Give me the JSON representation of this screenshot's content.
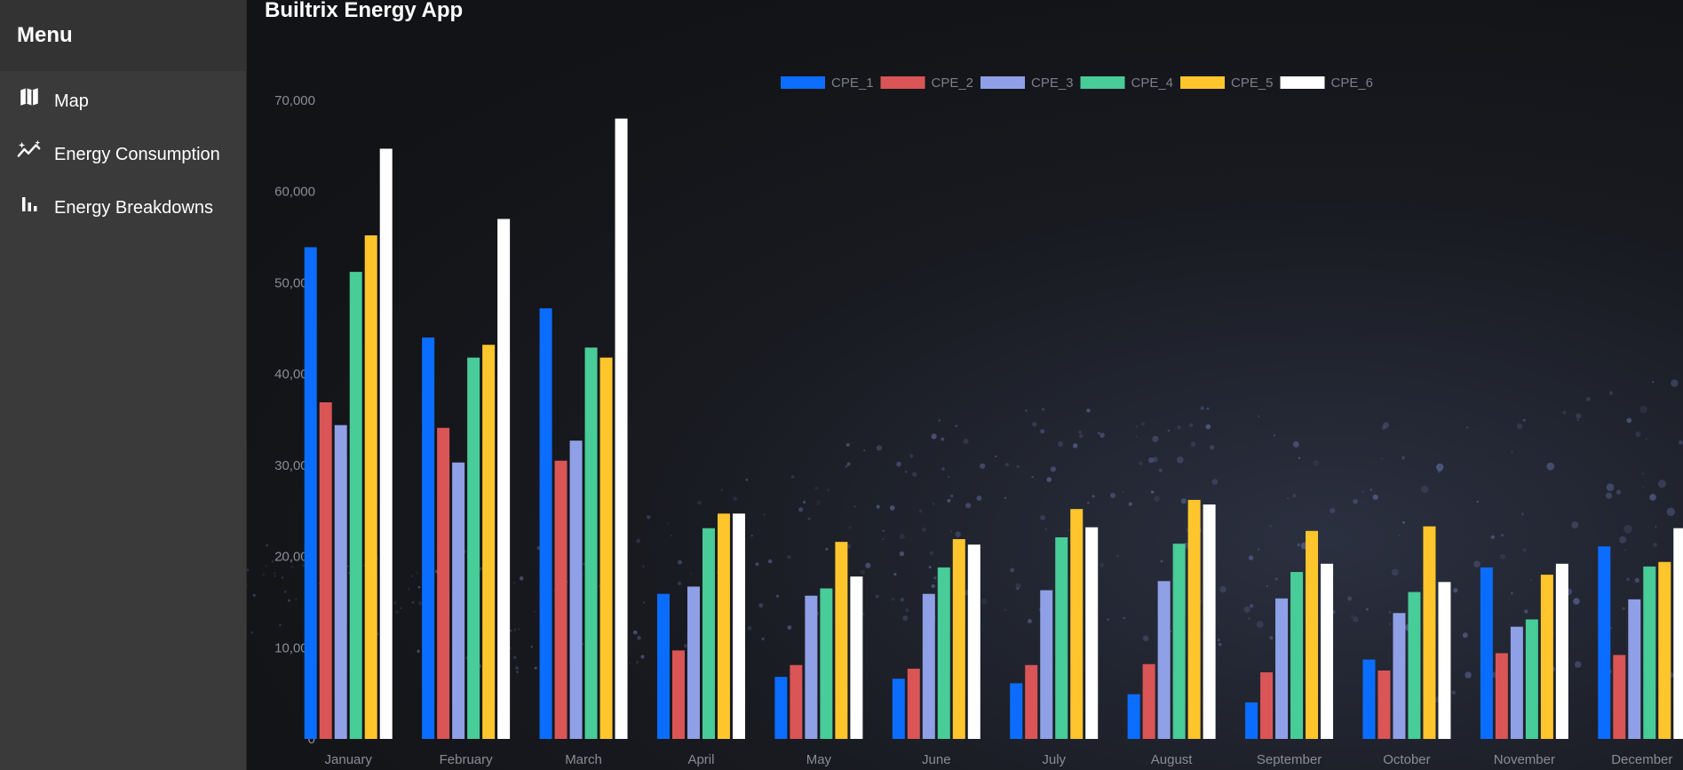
{
  "sidebar": {
    "title": "Menu",
    "items": [
      {
        "label": "Map",
        "icon": "map-icon"
      },
      {
        "label": "Energy Consumption",
        "icon": "sparkle-chart-icon"
      },
      {
        "label": "Energy Breakdowns",
        "icon": "bar-chart-icon"
      }
    ]
  },
  "header": {
    "title": "Builtrix Energy App"
  },
  "chart_data": {
    "type": "bar",
    "title": "",
    "xlabel": "",
    "ylabel": "",
    "ylim": [
      0,
      70000
    ],
    "yticks": [
      "0",
      "10,000",
      "20,000",
      "30,000",
      "40,000",
      "50,000",
      "60,000",
      "70,000"
    ],
    "legend_position": "top-center",
    "grid": false,
    "categories": [
      "January",
      "February",
      "March",
      "April",
      "May",
      "June",
      "July",
      "August",
      "September",
      "October",
      "November",
      "December"
    ],
    "series": [
      {
        "name": "CPE_1",
        "color": "#0a6dff",
        "values": [
          53900,
          44000,
          47200,
          15900,
          6800,
          6600,
          6100,
          4900,
          4000,
          8700,
          18800,
          21100
        ]
      },
      {
        "name": "CPE_2",
        "color": "#d95556",
        "values": [
          36900,
          34100,
          30500,
          9700,
          8100,
          7700,
          8100,
          8200,
          7300,
          7500,
          9400,
          9200
        ]
      },
      {
        "name": "CPE_3",
        "color": "#8fa0e6",
        "values": [
          34400,
          30300,
          32700,
          16700,
          15700,
          15900,
          16300,
          17300,
          15400,
          13800,
          12300,
          15300
        ]
      },
      {
        "name": "CPE_4",
        "color": "#48cc98",
        "values": [
          51200,
          41800,
          42900,
          23100,
          16500,
          18800,
          22100,
          21400,
          18300,
          16100,
          13100,
          18900
        ]
      },
      {
        "name": "CPE_5",
        "color": "#fec62c",
        "values": [
          55200,
          43200,
          41800,
          24700,
          21600,
          21900,
          25200,
          26200,
          22800,
          23300,
          18000,
          19400
        ]
      },
      {
        "name": "CPE_6",
        "color": "#ffffff",
        "values": [
          64700,
          57000,
          68000,
          24700,
          17800,
          21300,
          23200,
          25700,
          19200,
          17200,
          19200,
          23100
        ]
      }
    ]
  }
}
